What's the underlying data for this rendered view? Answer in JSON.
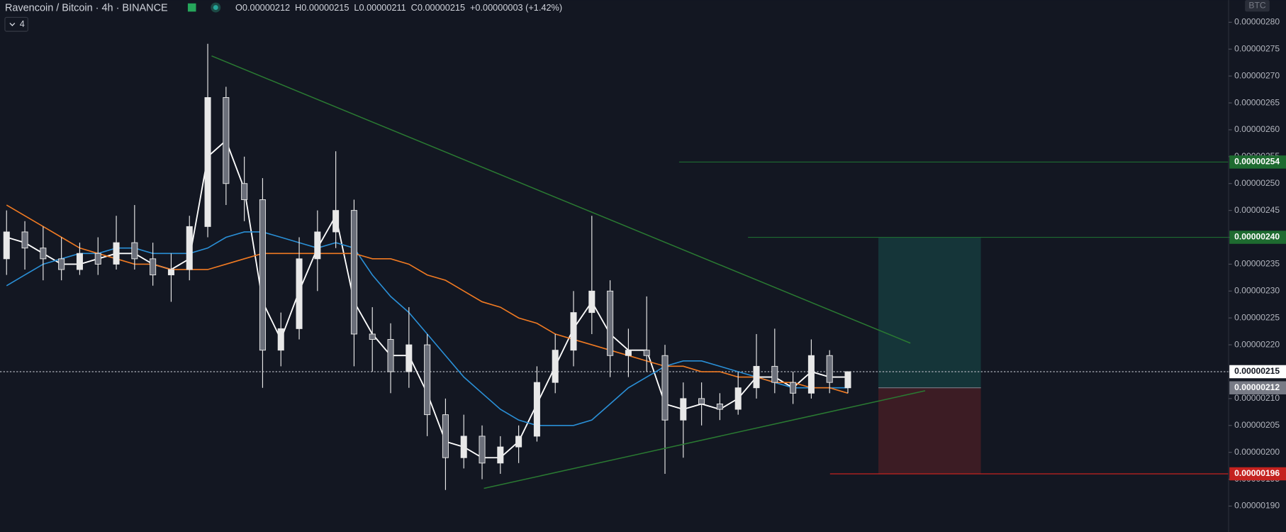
{
  "chart_data": {
    "type": "candlestick",
    "title": "Ravencoin / Bitcoin · 4h · BINANCE",
    "ohlc_labels": [
      "O0.00000212",
      "H0.00000215",
      "L0.00000211",
      "C0.00000215"
    ],
    "change": "+0.00000003 (+1.42%)",
    "indicator_count": "4",
    "currency": "BTC",
    "up_color": "#e8e8e8",
    "down_color": "#6b6f7a",
    "categories": [
      null,
      null,
      null,
      null,
      null,
      null,
      null,
      null,
      null,
      null,
      null,
      null,
      null,
      null,
      null,
      null,
      null,
      null,
      null,
      null,
      null,
      null,
      null,
      null,
      null,
      null,
      null,
      null,
      null,
      null,
      null,
      null,
      null,
      null,
      null,
      null,
      null,
      null,
      null,
      null,
      null,
      null,
      null,
      null,
      null,
      null,
      null
    ],
    "open": [
      2.36e-06,
      2.41e-06,
      2.38e-06,
      2.36e-06,
      2.34e-06,
      2.37e-06,
      2.35e-06,
      2.39e-06,
      2.36e-06,
      2.33e-06,
      2.34e-06,
      2.42e-06,
      2.66e-06,
      2.5e-06,
      2.47e-06,
      2.19e-06,
      2.23e-06,
      2.36e-06,
      2.41e-06,
      2.45e-06,
      2.22e-06,
      2.21e-06,
      2.15e-06,
      2.2e-06,
      2.07e-06,
      1.99e-06,
      2.03e-06,
      1.98e-06,
      2.01e-06,
      2.03e-06,
      2.13e-06,
      2.19e-06,
      2.26e-06,
      2.3e-06,
      2.18e-06,
      2.19e-06,
      2.18e-06,
      2.06e-06,
      2.1e-06,
      2.09e-06,
      2.08e-06,
      2.12e-06,
      2.16e-06,
      2.13e-06,
      2.11e-06,
      2.18e-06,
      2.12e-06
    ],
    "high": [
      2.45e-06,
      2.43e-06,
      2.42e-06,
      2.4e-06,
      2.39e-06,
      2.4e-06,
      2.44e-06,
      2.46e-06,
      2.39e-06,
      2.37e-06,
      2.44e-06,
      2.76e-06,
      2.68e-06,
      2.55e-06,
      2.51e-06,
      2.26e-06,
      2.4e-06,
      2.45e-06,
      2.56e-06,
      2.47e-06,
      2.27e-06,
      2.24e-06,
      2.27e-06,
      2.22e-06,
      2.1e-06,
      2.07e-06,
      2.05e-06,
      2.03e-06,
      2.05e-06,
      2.16e-06,
      2.22e-06,
      2.3e-06,
      2.44e-06,
      2.32e-06,
      2.23e-06,
      2.29e-06,
      2.2e-06,
      2.13e-06,
      2.13e-06,
      2.11e-06,
      2.15e-06,
      2.22e-06,
      2.23e-06,
      2.15e-06,
      2.21e-06,
      2.19e-06,
      2.15e-06
    ],
    "low": [
      2.33e-06,
      2.34e-06,
      2.32e-06,
      2.32e-06,
      2.33e-06,
      2.33e-06,
      2.34e-06,
      2.34e-06,
      2.31e-06,
      2.28e-06,
      2.32e-06,
      2.4e-06,
      2.46e-06,
      2.43e-06,
      2.12e-06,
      2.16e-06,
      2.21e-06,
      2.3e-06,
      2.38e-06,
      2.16e-06,
      2.15e-06,
      2.11e-06,
      2.12e-06,
      2.03e-06,
      1.93e-06,
      1.97e-06,
      1.95e-06,
      1.96e-06,
      1.98e-06,
      2.02e-06,
      2.11e-06,
      2.16e-06,
      2.22e-06,
      2.14e-06,
      2.14e-06,
      2.15e-06,
      1.96e-06,
      1.99e-06,
      2.05e-06,
      2.06e-06,
      2.07e-06,
      2.1e-06,
      2.11e-06,
      2.09e-06,
      2.1e-06,
      2.11e-06,
      2.11e-06
    ],
    "close": [
      2.41e-06,
      2.38e-06,
      2.36e-06,
      2.34e-06,
      2.37e-06,
      2.35e-06,
      2.39e-06,
      2.36e-06,
      2.33e-06,
      2.34e-06,
      2.42e-06,
      2.66e-06,
      2.5e-06,
      2.47e-06,
      2.19e-06,
      2.23e-06,
      2.36e-06,
      2.41e-06,
      2.45e-06,
      2.22e-06,
      2.21e-06,
      2.15e-06,
      2.2e-06,
      2.07e-06,
      1.99e-06,
      2.03e-06,
      1.98e-06,
      2.01e-06,
      2.03e-06,
      2.13e-06,
      2.19e-06,
      2.26e-06,
      2.3e-06,
      2.18e-06,
      2.19e-06,
      2.18e-06,
      2.06e-06,
      2.1e-06,
      2.09e-06,
      2.08e-06,
      2.12e-06,
      2.16e-06,
      2.13e-06,
      2.11e-06,
      2.18e-06,
      2.13e-06,
      2.15e-06
    ],
    "series": [
      {
        "color": "#ffffff",
        "values": [
          2.4e-06,
          2.39e-06,
          2.37e-06,
          2.35e-06,
          2.35e-06,
          2.36e-06,
          2.37e-06,
          2.37e-06,
          2.35e-06,
          2.34e-06,
          2.36e-06,
          2.55e-06,
          2.58e-06,
          2.49e-06,
          2.28e-06,
          2.21e-06,
          2.3e-06,
          2.38e-06,
          2.44e-06,
          2.28e-06,
          2.22e-06,
          2.18e-06,
          2.18e-06,
          2.11e-06,
          2.02e-06,
          2.01e-06,
          1.99e-06,
          1.99e-06,
          2.02e-06,
          2.09e-06,
          2.16e-06,
          2.23e-06,
          2.28e-06,
          2.22e-06,
          2.19e-06,
          2.19e-06,
          2.09e-06,
          2.08e-06,
          2.09e-06,
          2.08e-06,
          2.1e-06,
          2.14e-06,
          2.14e-06,
          2.12e-06,
          2.15e-06,
          2.14e-06,
          2.14e-06
        ]
      },
      {
        "color": "#2a8fd6",
        "values": [
          2.31e-06,
          2.33e-06,
          2.35e-06,
          2.36e-06,
          2.37e-06,
          2.37e-06,
          2.38e-06,
          2.38e-06,
          2.37e-06,
          2.37e-06,
          2.37e-06,
          2.38e-06,
          2.4e-06,
          2.41e-06,
          2.41e-06,
          2.4e-06,
          2.39e-06,
          2.38e-06,
          2.39e-06,
          2.38e-06,
          2.33e-06,
          2.29e-06,
          2.26e-06,
          2.22e-06,
          2.18e-06,
          2.14e-06,
          2.11e-06,
          2.08e-06,
          2.06e-06,
          2.05e-06,
          2.05e-06,
          2.05e-06,
          2.06e-06,
          2.09e-06,
          2.12e-06,
          2.14e-06,
          2.16e-06,
          2.17e-06,
          2.17e-06,
          2.16e-06,
          2.15e-06,
          2.14e-06,
          2.13e-06,
          2.12e-06,
          2.12e-06,
          2.12e-06,
          2.12e-06
        ]
      },
      {
        "color": "#f07a22",
        "values": [
          2.46e-06,
          2.44e-06,
          2.42e-06,
          2.4e-06,
          2.38e-06,
          2.37e-06,
          2.36e-06,
          2.35e-06,
          2.35e-06,
          2.34e-06,
          2.34e-06,
          2.34e-06,
          2.35e-06,
          2.36e-06,
          2.37e-06,
          2.37e-06,
          2.37e-06,
          2.37e-06,
          2.37e-06,
          2.37e-06,
          2.36e-06,
          2.36e-06,
          2.35e-06,
          2.33e-06,
          2.32e-06,
          2.3e-06,
          2.28e-06,
          2.27e-06,
          2.25e-06,
          2.24e-06,
          2.22e-06,
          2.21e-06,
          2.2e-06,
          2.19e-06,
          2.18e-06,
          2.17e-06,
          2.16e-06,
          2.16e-06,
          2.15e-06,
          2.15e-06,
          2.14e-06,
          2.14e-06,
          2.13e-06,
          2.13e-06,
          2.12e-06,
          2.12e-06,
          2.11e-06
        ]
      }
    ],
    "ylim": [
      1.852e-06,
      2.8412e-06
    ],
    "yticks": [
      {
        "value": 1.9e-06,
        "label": "0.00000190"
      },
      {
        "value": 1.95e-06,
        "label": "0.00000195"
      },
      {
        "value": 2e-06,
        "label": "0.00000200"
      },
      {
        "value": 2.05e-06,
        "label": "0.00000205"
      },
      {
        "value": 2.1e-06,
        "label": "0.00000210"
      },
      {
        "value": 2.15e-06,
        "label": "0.00000215"
      },
      {
        "value": 2.2e-06,
        "label": "0.00000220"
      },
      {
        "value": 2.25e-06,
        "label": "0.00000225"
      },
      {
        "value": 2.3e-06,
        "label": "0.00000230"
      },
      {
        "value": 2.35e-06,
        "label": "0.00000235"
      },
      {
        "value": 2.4e-06,
        "label": "0.00000240"
      },
      {
        "value": 2.45e-06,
        "label": "0.00000245"
      },
      {
        "value": 2.5e-06,
        "label": "0.00000250"
      },
      {
        "value": 2.55e-06,
        "label": "0.00000255"
      },
      {
        "value": 2.6e-06,
        "label": "0.00000260"
      },
      {
        "value": 2.65e-06,
        "label": "0.00000265"
      },
      {
        "value": 2.7e-06,
        "label": "0.00000270"
      },
      {
        "value": 2.75e-06,
        "label": "0.00000275"
      },
      {
        "value": 2.8e-06,
        "label": "0.00000280"
      }
    ],
    "price_labels": [
      {
        "value": 2.54e-06,
        "label": "0.00000254",
        "color": "#1e6b30"
      },
      {
        "value": 2.4e-06,
        "label": "0.00000240",
        "color": "#1e6b30"
      },
      {
        "value": 2.15e-06,
        "label": "0.00000215",
        "color": "#ffffff"
      },
      {
        "value": 2.12e-06,
        "label": "0.00000212",
        "color": "#787b86"
      },
      {
        "value": 1.96e-06,
        "label": "0.00000196",
        "color": "#c4221f"
      }
    ]
  }
}
